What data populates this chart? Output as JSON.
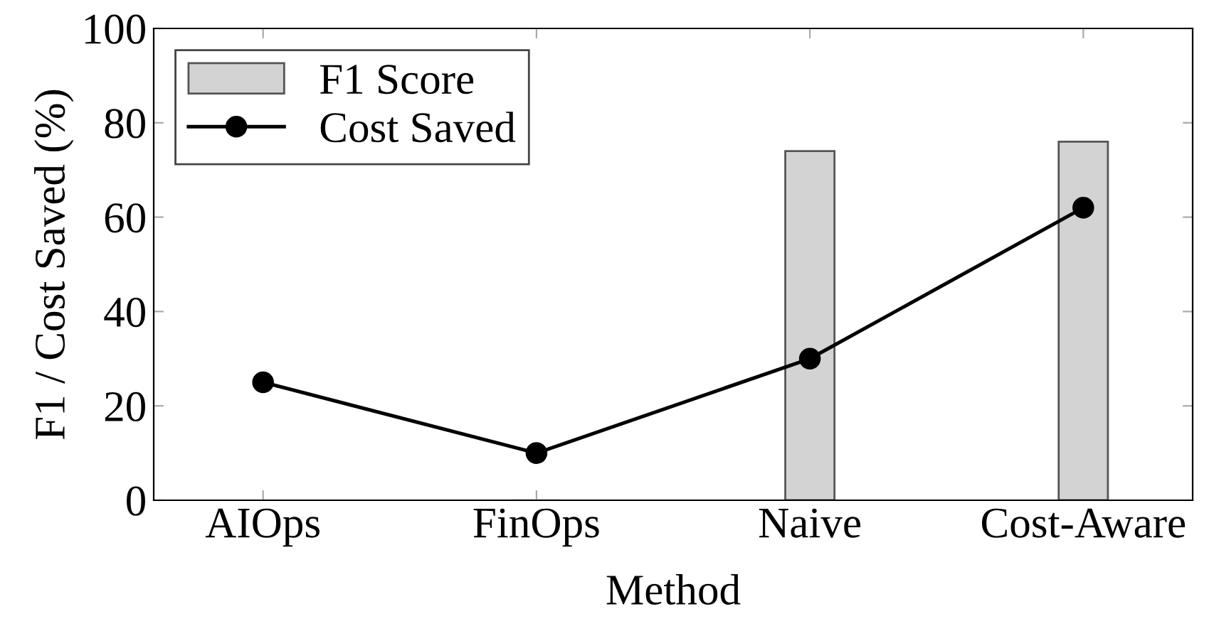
{
  "chart_data": {
    "type": "bar",
    "categories": [
      "AIOps",
      "FinOps",
      "Naive",
      "Cost-Aware"
    ],
    "xlabel": "Method",
    "ylabel": "F1 / Cost Saved (%)",
    "ylim": [
      0,
      100
    ],
    "yticks": [
      0,
      20,
      40,
      60,
      80,
      100
    ],
    "grid": false,
    "legend": "top left",
    "series": [
      {
        "name": "F1 Score",
        "color": "#d3d3d3",
        "values": [
          null,
          0,
          74,
          76
        ]
      },
      {
        "name": "Cost Saved",
        "type": "line",
        "color": "#000000",
        "marker": "circle",
        "line_style": "solid",
        "values": [
          25,
          10,
          30,
          62
        ]
      }
    ]
  }
}
